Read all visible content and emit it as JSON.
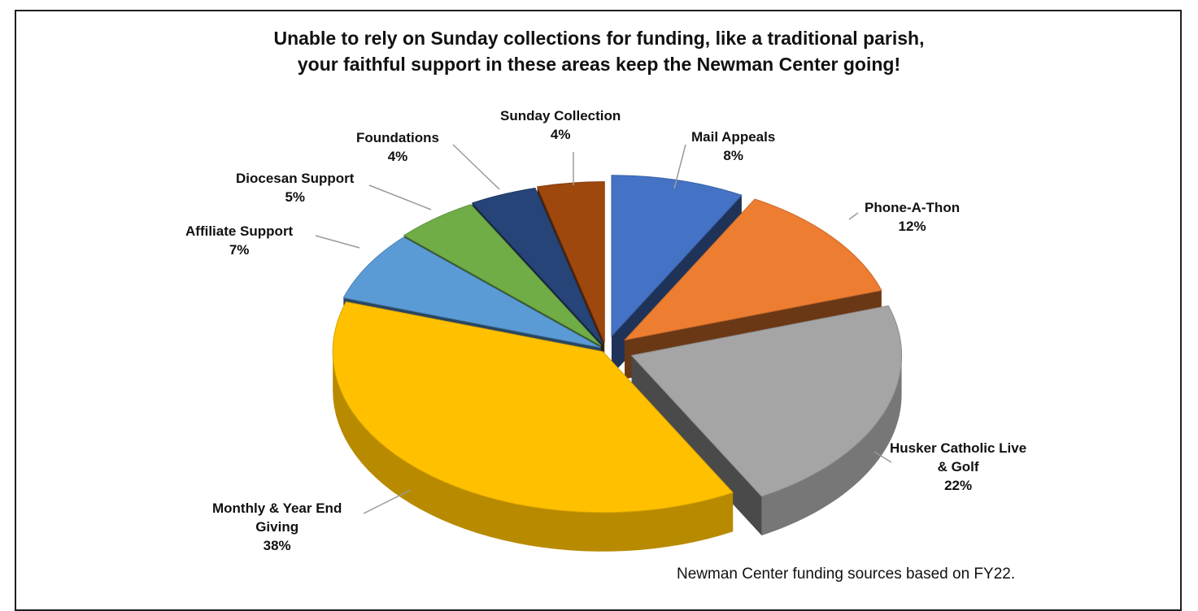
{
  "chart_data": {
    "type": "pie",
    "title_lines": [
      "Unable to rely on Sunday collections for funding, like a traditional parish,",
      "your faithful support in these areas keep the Newman Center going!"
    ],
    "footnote": "Newman Center funding sources based on FY22.",
    "three_d": true,
    "exploded": true,
    "slices": [
      {
        "name": "Mail Appeals",
        "value": 8,
        "label": "8%",
        "color": "#4472C4"
      },
      {
        "name": "Phone-A-Thon",
        "value": 12,
        "label": "12%",
        "color": "#ED7D31"
      },
      {
        "name_lines": [
          "Husker Catholic Live",
          "& Golf"
        ],
        "value": 22,
        "label": "22%",
        "color": "#A5A5A5"
      },
      {
        "name_lines": [
          "Monthly & Year End",
          "Giving"
        ],
        "value": 38,
        "label": "38%",
        "color": "#FFC000"
      },
      {
        "name": "Affiliate Support",
        "value": 7,
        "label": "7%",
        "color": "#5B9BD5"
      },
      {
        "name": "Diocesan Support",
        "value": 5,
        "label": "5%",
        "color": "#70AD47"
      },
      {
        "name": "Foundations",
        "value": 4,
        "label": "4%",
        "color": "#264478"
      },
      {
        "name": "Sunday Collection",
        "value": 4,
        "label": "4%",
        "color": "#9E480E"
      }
    ]
  }
}
